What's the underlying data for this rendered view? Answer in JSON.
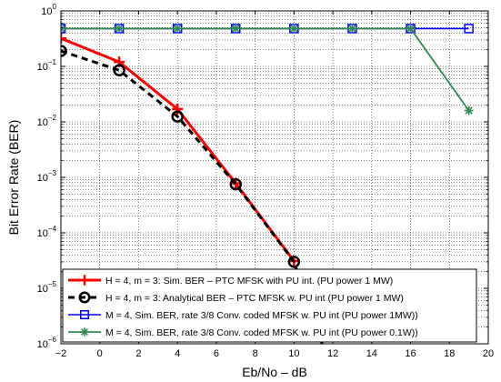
{
  "chart_data": {
    "type": "line",
    "title": "",
    "xlabel": "Eb/No – dB",
    "ylabel": "Bit Error Rate (BER)",
    "xlim": [
      -2,
      20
    ],
    "ylim": [
      1e-06,
      1
    ],
    "yscale": "log",
    "grid": true,
    "legend_position": "bottom-left",
    "x_ticks": [
      -2,
      0,
      2,
      4,
      6,
      8,
      10,
      12,
      14,
      16,
      18,
      20
    ],
    "x_tick_labels": [
      "−2",
      "0",
      "2",
      "4",
      "6",
      "8",
      "10",
      "12",
      "14",
      "16",
      "18",
      "20"
    ],
    "y_ticks": [
      1e-06,
      1e-05,
      0.0001,
      0.001,
      0.01,
      0.1,
      1
    ],
    "y_tick_labels": [
      {
        "base": "10",
        "exp": "−6"
      },
      {
        "base": "10",
        "exp": "−5"
      },
      {
        "base": "10",
        "exp": "−4"
      },
      {
        "base": "10",
        "exp": "−3"
      },
      {
        "base": "10",
        "exp": "−2"
      },
      {
        "base": "10",
        "exp": "−1"
      },
      {
        "base": "10",
        "exp": "0"
      }
    ],
    "series": [
      {
        "name": "H = 4, m = 3: Sim. BER – PTC MFSK with PU int. (PU power 1 MW)",
        "color": "#ff0000",
        "line": "solid",
        "marker": "plus",
        "x": [
          -2,
          1,
          4,
          7,
          10
        ],
        "y": [
          0.32,
          0.12,
          0.017,
          0.00078,
          3.1e-05
        ]
      },
      {
        "name": "H = 4, m = 3: Analytical BER – PTC MFSK w. PU int (PU power 1 MW)",
        "color": "#000000",
        "line": "dashed",
        "marker": "circle",
        "x": [
          -2,
          1,
          4,
          7,
          10,
          11.6
        ],
        "y": [
          0.19,
          0.085,
          0.0125,
          0.00075,
          3e-05,
          7e-07
        ]
      },
      {
        "name": "M = 4, Sim. BER, rate 3/8 Conv. coded MFSK w. PU int (PU power 1MW))",
        "color": "#0000ff",
        "line": "solid",
        "marker": "square",
        "x": [
          -2,
          1,
          4,
          7,
          10,
          13,
          16,
          19
        ],
        "y": [
          0.48,
          0.48,
          0.48,
          0.48,
          0.48,
          0.48,
          0.48,
          0.48
        ]
      },
      {
        "name": "M = 4, Sim. BER, rate 3/8 Conv. coded MFSK w. PU int (PU power 0.1W))",
        "color": "#2e8b57",
        "line": "solid",
        "marker": "star",
        "x": [
          -2,
          1,
          4,
          7,
          10,
          13,
          16,
          19
        ],
        "y": [
          0.48,
          0.48,
          0.48,
          0.48,
          0.48,
          0.48,
          0.48,
          0.016
        ]
      }
    ]
  }
}
